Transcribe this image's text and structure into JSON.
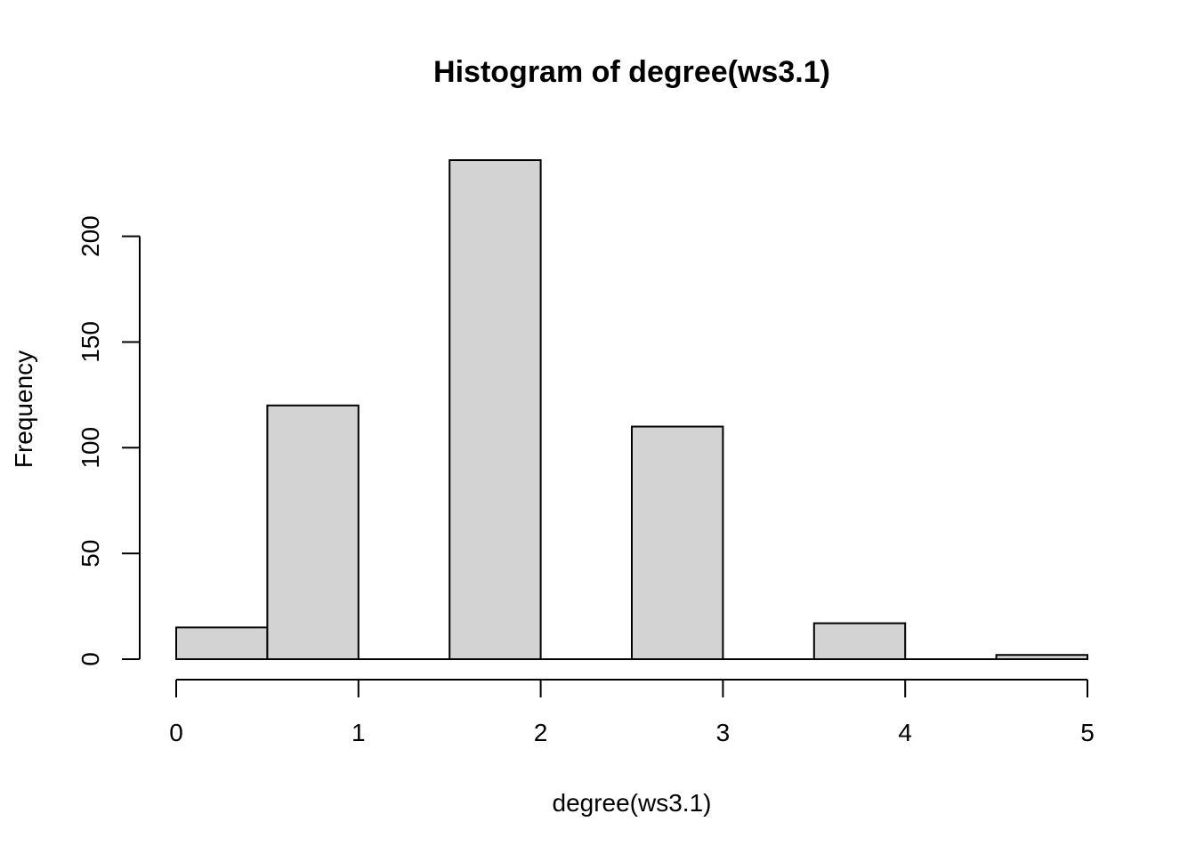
{
  "chart_data": {
    "type": "bar",
    "title": "Histogram of degree(ws3.1)",
    "xlabel": "degree(ws3.1)",
    "ylabel": "Frequency",
    "bins": [
      {
        "start": 0.0,
        "end": 0.5,
        "count": 15
      },
      {
        "start": 0.5,
        "end": 1.0,
        "count": 120
      },
      {
        "start": 1.0,
        "end": 1.5,
        "count": 0
      },
      {
        "start": 1.5,
        "end": 2.0,
        "count": 236
      },
      {
        "start": 2.0,
        "end": 2.5,
        "count": 0
      },
      {
        "start": 2.5,
        "end": 3.0,
        "count": 110
      },
      {
        "start": 3.0,
        "end": 3.5,
        "count": 0
      },
      {
        "start": 3.5,
        "end": 4.0,
        "count": 17
      },
      {
        "start": 4.0,
        "end": 4.5,
        "count": 0
      },
      {
        "start": 4.5,
        "end": 5.0,
        "count": 2
      }
    ],
    "xlim": [
      0,
      5
    ],
    "ylim": [
      0,
      236
    ],
    "x_ticks": [
      "0",
      "1",
      "2",
      "3",
      "4",
      "5"
    ],
    "y_ticks": [
      "0",
      "50",
      "100",
      "150",
      "200"
    ],
    "bar_color": "#d3d3d3",
    "grid": false,
    "legend": "none"
  }
}
